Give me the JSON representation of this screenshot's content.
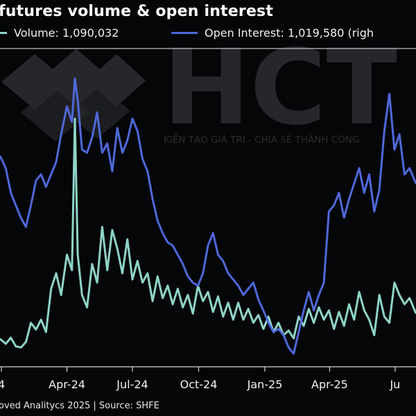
{
  "title": "futures volume & open interest",
  "footer": "oved Analitycs 2025 | Source: SHFE",
  "watermark": {
    "logo": "HCT",
    "tagline": "KIẾN TẠO GIÁ TRỊ - CHIA SẺ THÀNH CÔNG"
  },
  "colors": {
    "background": "#050608",
    "open_interest": "#4f68d9",
    "volume": "#8fd3c8",
    "axis": "#d9d9d9"
  },
  "chart_data": {
    "type": "line",
    "title": "futures volume & open interest",
    "x_ticks": [
      "4",
      "Apr-24",
      "Jul-24",
      "Oct-24",
      "Jan-25",
      "Apr-25",
      "Ju"
    ],
    "x_tick_dates": [
      "2024-01-01",
      "2024-04-01",
      "2024-07-01",
      "2024-10-01",
      "2025-01-01",
      "2025-04-01",
      "2025-07-01"
    ],
    "x_range": [
      "2023-12-30",
      "2025-07-30"
    ],
    "y_axis_left": {
      "range": [
        0,
        1000
      ],
      "unit": "index",
      "ticks_visible": false
    },
    "grid": false,
    "legend_placement": "top",
    "series": [
      {
        "name": "Volume",
        "legend_label": "Volume: 1,090,032",
        "axis": "left",
        "color": "#8fd3c8",
        "points": [
          [
            "2023-12-30",
            88
          ],
          [
            "2024-01-07",
            72
          ],
          [
            "2024-01-14",
            92
          ],
          [
            "2024-01-21",
            64
          ],
          [
            "2024-01-28",
            60
          ],
          [
            "2024-02-04",
            78
          ],
          [
            "2024-02-11",
            140
          ],
          [
            "2024-02-18",
            118
          ],
          [
            "2024-02-25",
            150
          ],
          [
            "2024-03-03",
            110
          ],
          [
            "2024-03-10",
            250
          ],
          [
            "2024-03-17",
            300
          ],
          [
            "2024-03-24",
            230
          ],
          [
            "2024-04-01",
            360
          ],
          [
            "2024-04-08",
            310
          ],
          [
            "2024-04-12",
            800
          ],
          [
            "2024-04-16",
            360
          ],
          [
            "2024-04-22",
            230
          ],
          [
            "2024-04-29",
            190
          ],
          [
            "2024-05-06",
            330
          ],
          [
            "2024-05-13",
            270
          ],
          [
            "2024-05-20",
            450
          ],
          [
            "2024-05-27",
            310
          ],
          [
            "2024-06-03",
            440
          ],
          [
            "2024-06-10",
            380
          ],
          [
            "2024-06-17",
            300
          ],
          [
            "2024-06-24",
            410
          ],
          [
            "2024-07-01",
            280
          ],
          [
            "2024-07-08",
            340
          ],
          [
            "2024-07-15",
            270
          ],
          [
            "2024-07-22",
            300
          ],
          [
            "2024-07-29",
            210
          ],
          [
            "2024-08-05",
            290
          ],
          [
            "2024-08-12",
            220
          ],
          [
            "2024-08-19",
            260
          ],
          [
            "2024-08-26",
            200
          ],
          [
            "2024-09-02",
            250
          ],
          [
            "2024-09-09",
            190
          ],
          [
            "2024-09-16",
            230
          ],
          [
            "2024-09-23",
            170
          ],
          [
            "2024-09-30",
            260
          ],
          [
            "2024-10-07",
            210
          ],
          [
            "2024-10-14",
            240
          ],
          [
            "2024-10-21",
            175
          ],
          [
            "2024-10-28",
            225
          ],
          [
            "2024-11-04",
            160
          ],
          [
            "2024-11-11",
            205
          ],
          [
            "2024-11-18",
            150
          ],
          [
            "2024-11-25",
            205
          ],
          [
            "2024-12-02",
            150
          ],
          [
            "2024-12-09",
            185
          ],
          [
            "2024-12-16",
            140
          ],
          [
            "2024-12-23",
            165
          ],
          [
            "2024-12-30",
            120
          ],
          [
            "2025-01-06",
            160
          ],
          [
            "2025-01-13",
            110
          ],
          [
            "2025-01-20",
            140
          ],
          [
            "2025-01-27",
            100
          ],
          [
            "2025-02-03",
            115
          ],
          [
            "2025-02-10",
            90
          ],
          [
            "2025-02-17",
            160
          ],
          [
            "2025-02-24",
            130
          ],
          [
            "2025-03-03",
            185
          ],
          [
            "2025-03-10",
            140
          ],
          [
            "2025-03-17",
            190
          ],
          [
            "2025-03-24",
            150
          ],
          [
            "2025-03-31",
            180
          ],
          [
            "2025-04-07",
            120
          ],
          [
            "2025-04-14",
            175
          ],
          [
            "2025-04-21",
            130
          ],
          [
            "2025-04-28",
            200
          ],
          [
            "2025-05-05",
            150
          ],
          [
            "2025-05-12",
            240
          ],
          [
            "2025-05-19",
            180
          ],
          [
            "2025-05-26",
            150
          ],
          [
            "2025-06-02",
            100
          ],
          [
            "2025-06-09",
            230
          ],
          [
            "2025-06-16",
            160
          ],
          [
            "2025-06-23",
            140
          ],
          [
            "2025-06-30",
            270
          ],
          [
            "2025-07-07",
            230
          ],
          [
            "2025-07-14",
            200
          ],
          [
            "2025-07-21",
            220
          ],
          [
            "2025-07-30",
            170
          ]
        ]
      },
      {
        "name": "Open Interest",
        "legend_label": "Open Interest: 1,019,580 (righ",
        "axis": "right",
        "color": "#4f68d9",
        "points": [
          [
            "2023-12-30",
            680
          ],
          [
            "2024-01-07",
            640
          ],
          [
            "2024-01-14",
            560
          ],
          [
            "2024-01-21",
            520
          ],
          [
            "2024-01-28",
            480
          ],
          [
            "2024-02-04",
            450
          ],
          [
            "2024-02-11",
            520
          ],
          [
            "2024-02-18",
            600
          ],
          [
            "2024-02-25",
            620
          ],
          [
            "2024-03-03",
            580
          ],
          [
            "2024-03-10",
            620
          ],
          [
            "2024-03-17",
            660
          ],
          [
            "2024-03-24",
            750
          ],
          [
            "2024-04-01",
            840
          ],
          [
            "2024-04-08",
            790
          ],
          [
            "2024-04-12",
            930
          ],
          [
            "2024-04-16",
            860
          ],
          [
            "2024-04-22",
            700
          ],
          [
            "2024-04-29",
            690
          ],
          [
            "2024-05-06",
            740
          ],
          [
            "2024-05-13",
            820
          ],
          [
            "2024-05-20",
            690
          ],
          [
            "2024-05-27",
            720
          ],
          [
            "2024-06-03",
            630
          ],
          [
            "2024-06-10",
            770
          ],
          [
            "2024-06-17",
            690
          ],
          [
            "2024-06-24",
            730
          ],
          [
            "2024-07-01",
            800
          ],
          [
            "2024-07-08",
            760
          ],
          [
            "2024-07-15",
            670
          ],
          [
            "2024-07-22",
            630
          ],
          [
            "2024-07-29",
            540
          ],
          [
            "2024-08-05",
            470
          ],
          [
            "2024-08-12",
            430
          ],
          [
            "2024-08-19",
            400
          ],
          [
            "2024-08-26",
            390
          ],
          [
            "2024-09-02",
            360
          ],
          [
            "2024-09-09",
            330
          ],
          [
            "2024-09-16",
            290
          ],
          [
            "2024-09-23",
            270
          ],
          [
            "2024-09-30",
            260
          ],
          [
            "2024-10-07",
            300
          ],
          [
            "2024-10-14",
            390
          ],
          [
            "2024-10-21",
            430
          ],
          [
            "2024-10-28",
            360
          ],
          [
            "2024-11-04",
            340
          ],
          [
            "2024-11-11",
            300
          ],
          [
            "2024-11-18",
            280
          ],
          [
            "2024-11-25",
            260
          ],
          [
            "2024-12-02",
            230
          ],
          [
            "2024-12-09",
            250
          ],
          [
            "2024-12-16",
            270
          ],
          [
            "2024-12-23",
            215
          ],
          [
            "2024-12-30",
            180
          ],
          [
            "2025-01-06",
            140
          ],
          [
            "2025-01-13",
            110
          ],
          [
            "2025-01-20",
            120
          ],
          [
            "2025-01-27",
            100
          ],
          [
            "2025-02-03",
            60
          ],
          [
            "2025-02-10",
            40
          ],
          [
            "2025-02-17",
            110
          ],
          [
            "2025-02-24",
            180
          ],
          [
            "2025-03-03",
            240
          ],
          [
            "2025-03-10",
            180
          ],
          [
            "2025-03-17",
            230
          ],
          [
            "2025-03-24",
            270
          ],
          [
            "2025-03-31",
            500
          ],
          [
            "2025-04-07",
            520
          ],
          [
            "2025-04-14",
            560
          ],
          [
            "2025-04-21",
            480
          ],
          [
            "2025-04-28",
            540
          ],
          [
            "2025-05-05",
            590
          ],
          [
            "2025-05-12",
            640
          ],
          [
            "2025-05-19",
            560
          ],
          [
            "2025-05-26",
            620
          ],
          [
            "2025-06-02",
            500
          ],
          [
            "2025-06-09",
            570
          ],
          [
            "2025-06-16",
            760
          ],
          [
            "2025-06-23",
            880
          ],
          [
            "2025-06-30",
            700
          ],
          [
            "2025-07-07",
            750
          ],
          [
            "2025-07-14",
            620
          ],
          [
            "2025-07-21",
            640
          ],
          [
            "2025-07-30",
            590
          ]
        ]
      }
    ]
  }
}
